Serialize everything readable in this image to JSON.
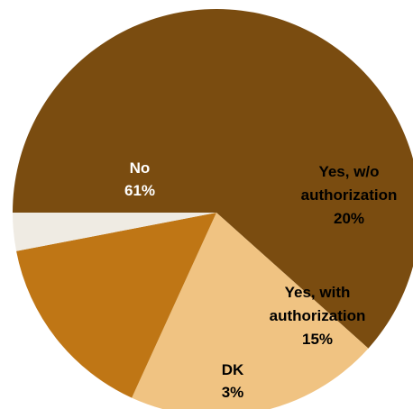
{
  "chart_data": {
    "type": "pie",
    "start_angle_deg": 180,
    "direction": "clockwise",
    "slices": [
      {
        "label": "No",
        "value": 61,
        "display": "61%",
        "color": "#7a4c10",
        "text_color": "#ffffff"
      },
      {
        "label": "Yes, w/o authorization",
        "value": 20,
        "display": "20%",
        "color": "#f0c382",
        "text_color": "#000000"
      },
      {
        "label": "Yes, with authorization",
        "value": 15,
        "display": "15%",
        "color": "#bf7615",
        "text_color": "#000000"
      },
      {
        "label": "DK",
        "value": 3,
        "display": "3%",
        "color": "#efebe3",
        "text_color": "#000000"
      }
    ]
  }
}
